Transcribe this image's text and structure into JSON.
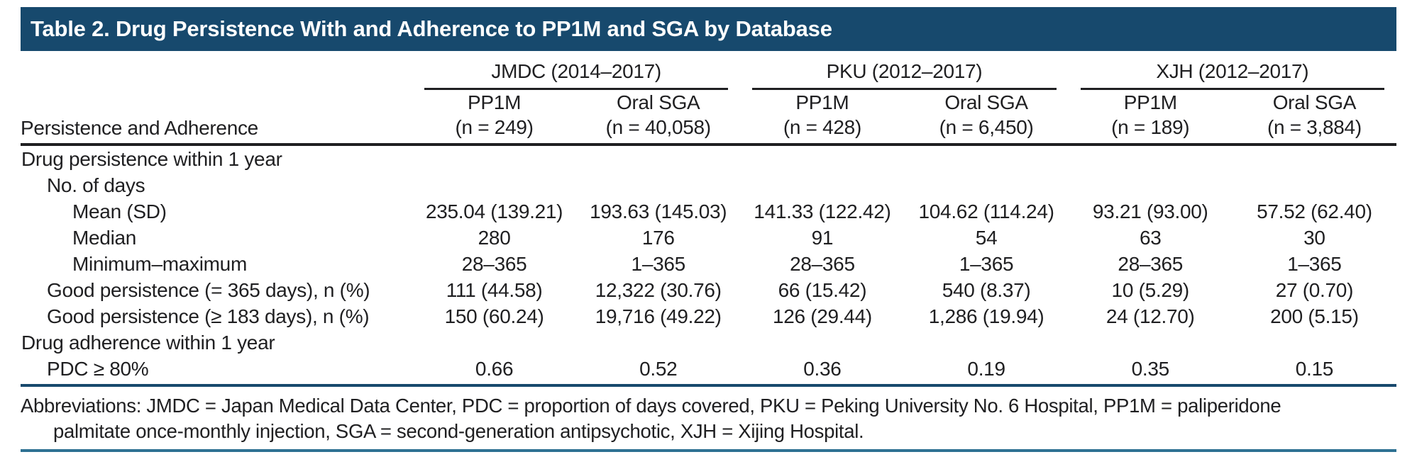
{
  "title": "Table 2. Drug Persistence With and Adherence to PP1M and SGA by Database",
  "colors": {
    "title_bar_bg": "#17496D",
    "title_text": "#ffffff",
    "rule_black": "#1f1f21",
    "rule_navy": "#17496D",
    "rule_teal": "#2E7193"
  },
  "table": {
    "stub_header": "Persistence and Adherence",
    "groups": [
      {
        "label": "JMDC (2014–2017)",
        "cols": [
          {
            "drug": "PP1M",
            "n": "(n = 249)"
          },
          {
            "drug": "Oral SGA",
            "n": "(n = 40,058)"
          }
        ]
      },
      {
        "label": "PKU (2012–2017)",
        "cols": [
          {
            "drug": "PP1M",
            "n": "(n = 428)"
          },
          {
            "drug": "Oral SGA",
            "n": "(n = 6,450)"
          }
        ]
      },
      {
        "label": "XJH (2012–2017)",
        "cols": [
          {
            "drug": "PP1M",
            "n": "(n = 189)"
          },
          {
            "drug": "Oral SGA",
            "n": "(n = 3,884)"
          }
        ]
      }
    ],
    "rows": [
      {
        "label": "Drug persistence within 1 year",
        "indent": 0,
        "values": [
          "",
          "",
          "",
          "",
          "",
          ""
        ]
      },
      {
        "label": "No. of days",
        "indent": 1,
        "values": [
          "",
          "",
          "",
          "",
          "",
          ""
        ]
      },
      {
        "label": "Mean (SD)",
        "indent": 2,
        "values": [
          "235.04 (139.21)",
          "193.63 (145.03)",
          "141.33 (122.42)",
          "104.62 (114.24)",
          "93.21 (93.00)",
          "57.52 (62.40)"
        ]
      },
      {
        "label": "Median",
        "indent": 2,
        "values": [
          "280",
          "176",
          "91",
          "54",
          "63",
          "30"
        ]
      },
      {
        "label": "Minimum–maximum",
        "indent": 2,
        "values": [
          "28–365",
          "1–365",
          "28–365",
          "1–365",
          "28–365",
          "1–365"
        ]
      },
      {
        "label": "Good persistence (= 365 days), n (%)",
        "indent": 1,
        "values": [
          "111 (44.58)",
          "12,322 (30.76)",
          "66 (15.42)",
          "540 (8.37)",
          "10 (5.29)",
          "27 (0.70)"
        ]
      },
      {
        "label": "Good persistence (≥ 183 days), n (%)",
        "indent": 1,
        "values": [
          "150 (60.24)",
          "19,716 (49.22)",
          "126 (29.44)",
          "1,286 (19.94)",
          "24 (12.70)",
          "200 (5.15)"
        ]
      },
      {
        "label": "Drug adherence within 1 year",
        "indent": 0,
        "values": [
          "",
          "",
          "",
          "",
          "",
          ""
        ]
      },
      {
        "label": "PDC ≥ 80%",
        "indent": 1,
        "values": [
          "0.66",
          "0.52",
          "0.36",
          "0.19",
          "0.35",
          "0.15"
        ]
      }
    ]
  },
  "footnote": {
    "line1": "Abbreviations: JMDC = Japan Medical Data Center, PDC = proportion of days covered, PKU = Peking University No. 6 Hospital, PP1M = paliperidone",
    "line2": "palmitate once-monthly injection, SGA = second-generation antipsychotic, XJH = Xijing Hospital."
  }
}
